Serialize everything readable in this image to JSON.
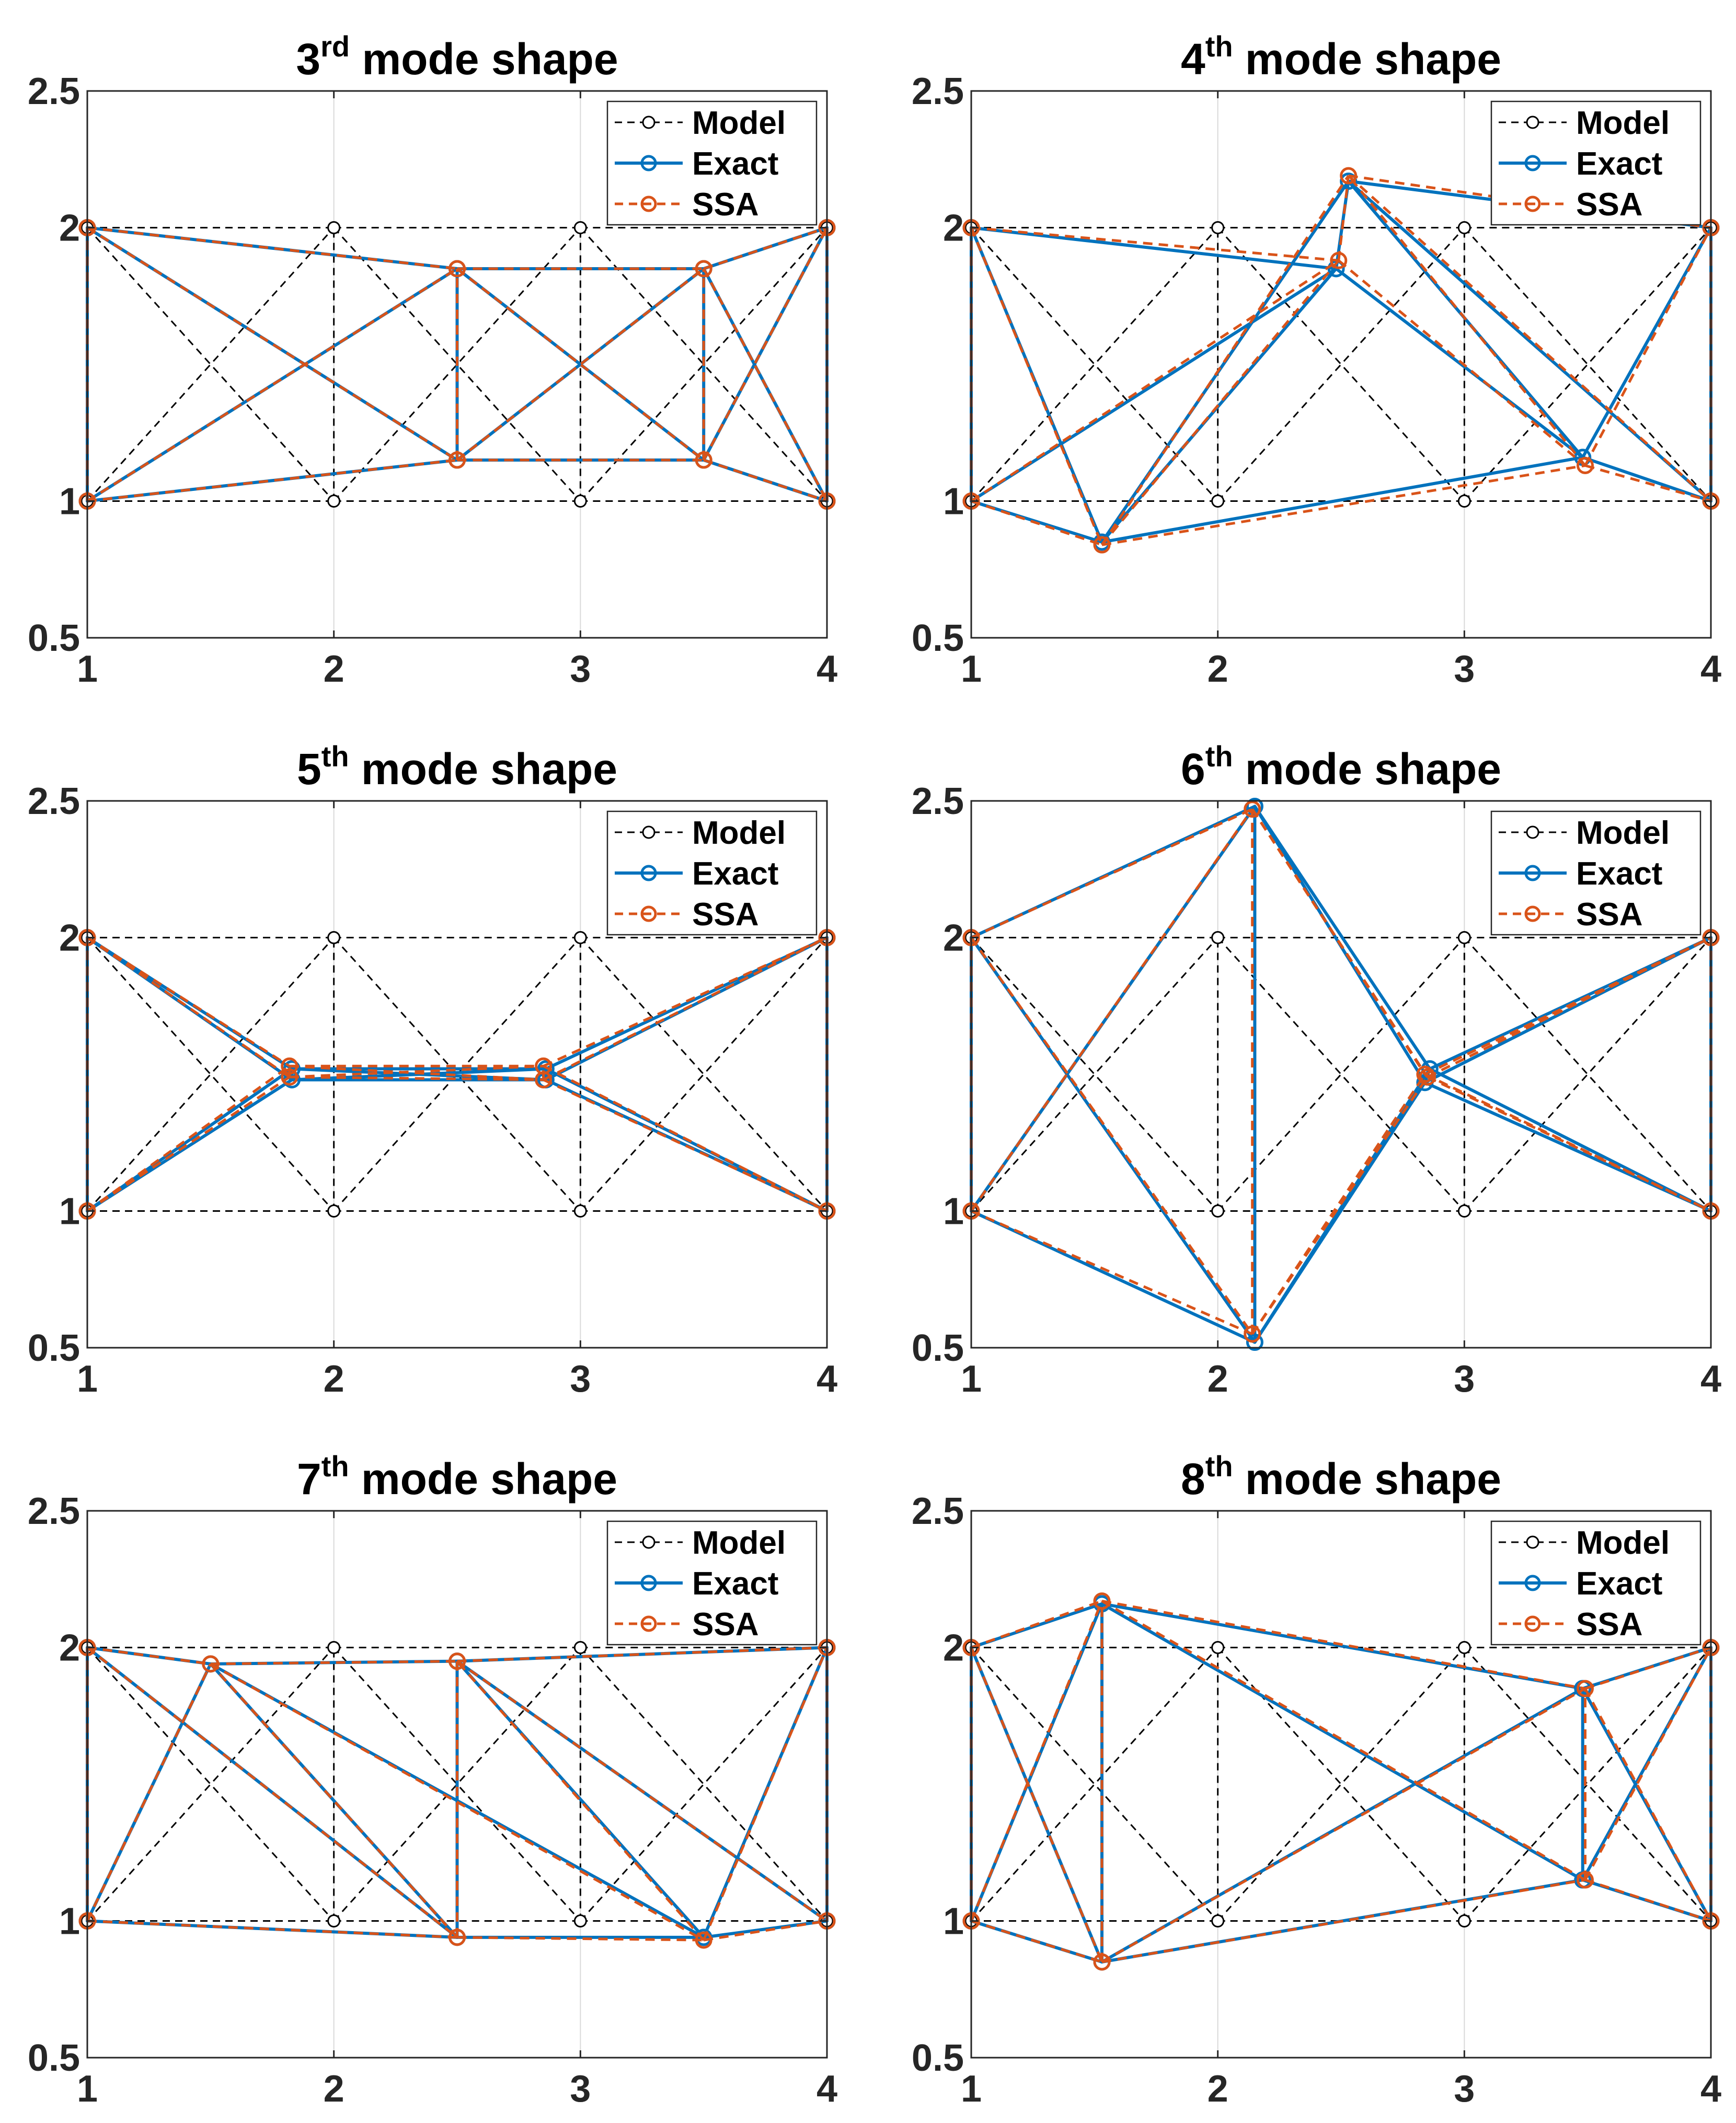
{
  "figure": {
    "legend_labels": [
      "Model",
      "Exact",
      "SSA"
    ],
    "colors": {
      "model": "#000000",
      "exact": "#0072BD",
      "ssa": "#D95319",
      "grid": "#d9d9d9",
      "axis": "#262626"
    }
  },
  "chart_data": [
    {
      "type": "line",
      "title_ordinal": "3",
      "title_sup": "rd",
      "title_rest": " mode shape",
      "xlim": [
        1,
        4
      ],
      "ylim": [
        0.5,
        2.5
      ],
      "xticks": [
        1,
        2,
        3,
        4
      ],
      "yticks": [
        0.5,
        1,
        2,
        2.5
      ],
      "grid": "x",
      "legend": "top-right",
      "model": {
        "nodes": [
          [
            1,
            1
          ],
          [
            2,
            1
          ],
          [
            3,
            1
          ],
          [
            4,
            1
          ],
          [
            1,
            2
          ],
          [
            2,
            2
          ],
          [
            3,
            2
          ],
          [
            4,
            2
          ]
        ],
        "members": [
          [
            0,
            1
          ],
          [
            1,
            2
          ],
          [
            2,
            3
          ],
          [
            4,
            5
          ],
          [
            5,
            6
          ],
          [
            6,
            7
          ],
          [
            0,
            4
          ],
          [
            3,
            7
          ],
          [
            1,
            5
          ],
          [
            2,
            6
          ],
          [
            0,
            5
          ],
          [
            4,
            1
          ],
          [
            1,
            6
          ],
          [
            5,
            2
          ],
          [
            2,
            7
          ],
          [
            6,
            3
          ]
        ]
      },
      "exact": {
        "nodes": [
          [
            1,
            1
          ],
          [
            2.5,
            1.15
          ],
          [
            3.5,
            1.15
          ],
          [
            4,
            1
          ],
          [
            1,
            2
          ],
          [
            2.5,
            1.85
          ],
          [
            3.5,
            1.85
          ],
          [
            4,
            2
          ]
        ]
      },
      "ssa": {
        "nodes": [
          [
            1,
            1
          ],
          [
            2.5,
            1.15
          ],
          [
            3.5,
            1.15
          ],
          [
            4,
            1
          ],
          [
            1,
            2
          ],
          [
            2.5,
            1.85
          ],
          [
            3.5,
            1.85
          ],
          [
            4,
            2
          ]
        ]
      }
    },
    {
      "type": "line",
      "title_ordinal": "4",
      "title_sup": "th",
      "title_rest": " mode shape",
      "xlim": [
        1,
        4
      ],
      "ylim": [
        0.5,
        2.5
      ],
      "xticks": [
        1,
        2,
        3,
        4
      ],
      "yticks": [
        0.5,
        1,
        2,
        2.5
      ],
      "grid": "x",
      "legend": "top-right",
      "model": {
        "nodes": [
          [
            1,
            1
          ],
          [
            2,
            1
          ],
          [
            3,
            1
          ],
          [
            4,
            1
          ],
          [
            1,
            2
          ],
          [
            2,
            2
          ],
          [
            3,
            2
          ],
          [
            4,
            2
          ]
        ],
        "members": [
          [
            0,
            1
          ],
          [
            1,
            2
          ],
          [
            2,
            3
          ],
          [
            4,
            5
          ],
          [
            5,
            6
          ],
          [
            6,
            7
          ],
          [
            0,
            4
          ],
          [
            3,
            7
          ],
          [
            1,
            5
          ],
          [
            2,
            6
          ],
          [
            0,
            5
          ],
          [
            4,
            1
          ],
          [
            1,
            6
          ],
          [
            5,
            2
          ],
          [
            2,
            7
          ],
          [
            6,
            3
          ]
        ]
      },
      "exact": {
        "nodes": [
          [
            1,
            1
          ],
          [
            1.53,
            0.85
          ],
          [
            3.48,
            1.16
          ],
          [
            4,
            1
          ],
          [
            1,
            2
          ],
          [
            2.48,
            1.85
          ],
          [
            2.53,
            2.17
          ],
          [
            4,
            2
          ]
        ]
      },
      "ssa": {
        "nodes": [
          [
            1,
            1
          ],
          [
            1.53,
            0.84
          ],
          [
            3.49,
            1.13
          ],
          [
            4,
            1
          ],
          [
            1,
            2
          ],
          [
            2.49,
            1.88
          ],
          [
            2.53,
            2.19
          ],
          [
            4,
            2
          ]
        ]
      }
    },
    {
      "type": "line",
      "title_ordinal": "5",
      "title_sup": "th",
      "title_rest": " mode shape",
      "xlim": [
        1,
        4
      ],
      "ylim": [
        0.5,
        2.5
      ],
      "xticks": [
        1,
        2,
        3,
        4
      ],
      "yticks": [
        0.5,
        1,
        2,
        2.5
      ],
      "grid": "x",
      "legend": "top-right",
      "model": {
        "nodes": [
          [
            1,
            1
          ],
          [
            2,
            1
          ],
          [
            3,
            1
          ],
          [
            4,
            1
          ],
          [
            1,
            2
          ],
          [
            2,
            2
          ],
          [
            3,
            2
          ],
          [
            4,
            2
          ]
        ],
        "members": [
          [
            0,
            1
          ],
          [
            1,
            2
          ],
          [
            2,
            3
          ],
          [
            4,
            5
          ],
          [
            5,
            6
          ],
          [
            6,
            7
          ],
          [
            0,
            4
          ],
          [
            3,
            7
          ],
          [
            1,
            5
          ],
          [
            2,
            6
          ],
          [
            0,
            5
          ],
          [
            4,
            1
          ],
          [
            1,
            6
          ],
          [
            5,
            2
          ],
          [
            2,
            7
          ],
          [
            6,
            3
          ]
        ]
      },
      "exact": {
        "nodes": [
          [
            1,
            1
          ],
          [
            1.83,
            1.48
          ],
          [
            2.86,
            1.48
          ],
          [
            4,
            1
          ],
          [
            1,
            2
          ],
          [
            1.83,
            1.52
          ],
          [
            2.86,
            1.52
          ],
          [
            4,
            2
          ]
        ]
      },
      "ssa": {
        "nodes": [
          [
            1,
            1
          ],
          [
            1.82,
            1.49
          ],
          [
            2.85,
            1.48
          ],
          [
            4,
            1
          ],
          [
            1,
            2
          ],
          [
            1.82,
            1.53
          ],
          [
            2.85,
            1.53
          ],
          [
            4,
            2
          ]
        ]
      }
    },
    {
      "type": "line",
      "title_ordinal": "6",
      "title_sup": "th",
      "title_rest": " mode shape",
      "xlim": [
        1,
        4
      ],
      "ylim": [
        0.5,
        2.5
      ],
      "xticks": [
        1,
        2,
        3,
        4
      ],
      "yticks": [
        0.5,
        1,
        2,
        2.5
      ],
      "grid": "x",
      "legend": "top-right",
      "model": {
        "nodes": [
          [
            1,
            1
          ],
          [
            2,
            1
          ],
          [
            3,
            1
          ],
          [
            4,
            1
          ],
          [
            1,
            2
          ],
          [
            2,
            2
          ],
          [
            3,
            2
          ],
          [
            4,
            2
          ]
        ],
        "members": [
          [
            0,
            1
          ],
          [
            1,
            2
          ],
          [
            2,
            3
          ],
          [
            4,
            5
          ],
          [
            5,
            6
          ],
          [
            6,
            7
          ],
          [
            0,
            4
          ],
          [
            3,
            7
          ],
          [
            1,
            5
          ],
          [
            2,
            6
          ],
          [
            0,
            5
          ],
          [
            4,
            1
          ],
          [
            1,
            6
          ],
          [
            5,
            2
          ],
          [
            2,
            7
          ],
          [
            6,
            3
          ]
        ]
      },
      "exact": {
        "nodes": [
          [
            1,
            1
          ],
          [
            2.15,
            0.52
          ],
          [
            2.84,
            1.47
          ],
          [
            4,
            1
          ],
          [
            1,
            2
          ],
          [
            2.15,
            2.48
          ],
          [
            2.86,
            1.52
          ],
          [
            4,
            2
          ]
        ]
      },
      "ssa": {
        "nodes": [
          [
            1,
            1
          ],
          [
            2.14,
            0.55
          ],
          [
            2.85,
            1.49
          ],
          [
            4,
            1
          ],
          [
            1,
            2
          ],
          [
            2.14,
            2.47
          ],
          [
            2.84,
            1.5
          ],
          [
            4,
            2
          ]
        ]
      }
    },
    {
      "type": "line",
      "title_ordinal": "7",
      "title_sup": "th",
      "title_rest": " mode shape",
      "xlim": [
        1,
        4
      ],
      "ylim": [
        0.5,
        2.5
      ],
      "xticks": [
        1,
        2,
        3,
        4
      ],
      "yticks": [
        0.5,
        1,
        2,
        2.5
      ],
      "grid": "x",
      "legend": "top-right",
      "model": {
        "nodes": [
          [
            1,
            1
          ],
          [
            2,
            1
          ],
          [
            3,
            1
          ],
          [
            4,
            1
          ],
          [
            1,
            2
          ],
          [
            2,
            2
          ],
          [
            3,
            2
          ],
          [
            4,
            2
          ]
        ],
        "members": [
          [
            0,
            1
          ],
          [
            1,
            2
          ],
          [
            2,
            3
          ],
          [
            4,
            5
          ],
          [
            5,
            6
          ],
          [
            6,
            7
          ],
          [
            0,
            4
          ],
          [
            3,
            7
          ],
          [
            1,
            5
          ],
          [
            2,
            6
          ],
          [
            0,
            5
          ],
          [
            4,
            1
          ],
          [
            1,
            6
          ],
          [
            5,
            2
          ],
          [
            2,
            7
          ],
          [
            6,
            3
          ]
        ]
      },
      "exact": {
        "nodes": [
          [
            1,
            1
          ],
          [
            2.5,
            0.94
          ],
          [
            3.5,
            0.94
          ],
          [
            4,
            1
          ],
          [
            1,
            2
          ],
          [
            1.5,
            1.94
          ],
          [
            2.5,
            1.95
          ],
          [
            4,
            2
          ]
        ]
      },
      "ssa": {
        "nodes": [
          [
            1,
            1
          ],
          [
            2.5,
            0.94
          ],
          [
            3.5,
            0.93
          ],
          [
            4,
            1
          ],
          [
            1,
            2
          ],
          [
            1.5,
            1.94
          ],
          [
            2.5,
            1.95
          ],
          [
            4,
            2
          ]
        ]
      }
    },
    {
      "type": "line",
      "title_ordinal": "8",
      "title_sup": "th",
      "title_rest": " mode shape",
      "xlim": [
        1,
        4
      ],
      "ylim": [
        0.5,
        2.5
      ],
      "xticks": [
        1,
        2,
        3,
        4
      ],
      "yticks": [
        0.5,
        1,
        2,
        2.5
      ],
      "grid": "x",
      "legend": "top-right",
      "model": {
        "nodes": [
          [
            1,
            1
          ],
          [
            2,
            1
          ],
          [
            3,
            1
          ],
          [
            4,
            1
          ],
          [
            1,
            2
          ],
          [
            2,
            2
          ],
          [
            3,
            2
          ],
          [
            4,
            2
          ]
        ],
        "members": [
          [
            0,
            1
          ],
          [
            1,
            2
          ],
          [
            2,
            3
          ],
          [
            4,
            5
          ],
          [
            5,
            6
          ],
          [
            6,
            7
          ],
          [
            0,
            4
          ],
          [
            3,
            7
          ],
          [
            1,
            5
          ],
          [
            2,
            6
          ],
          [
            0,
            5
          ],
          [
            4,
            1
          ],
          [
            1,
            6
          ],
          [
            5,
            2
          ],
          [
            2,
            7
          ],
          [
            6,
            3
          ]
        ]
      },
      "exact": {
        "nodes": [
          [
            1,
            1
          ],
          [
            1.53,
            0.85
          ],
          [
            3.48,
            1.15
          ],
          [
            4,
            1
          ],
          [
            1,
            2
          ],
          [
            1.53,
            2.16
          ],
          [
            3.48,
            1.85
          ],
          [
            4,
            2
          ]
        ]
      },
      "ssa": {
        "nodes": [
          [
            1,
            1
          ],
          [
            1.53,
            0.85
          ],
          [
            3.49,
            1.15
          ],
          [
            4,
            1
          ],
          [
            1,
            2
          ],
          [
            1.53,
            2.17
          ],
          [
            3.49,
            1.85
          ],
          [
            4,
            2
          ]
        ]
      }
    }
  ]
}
